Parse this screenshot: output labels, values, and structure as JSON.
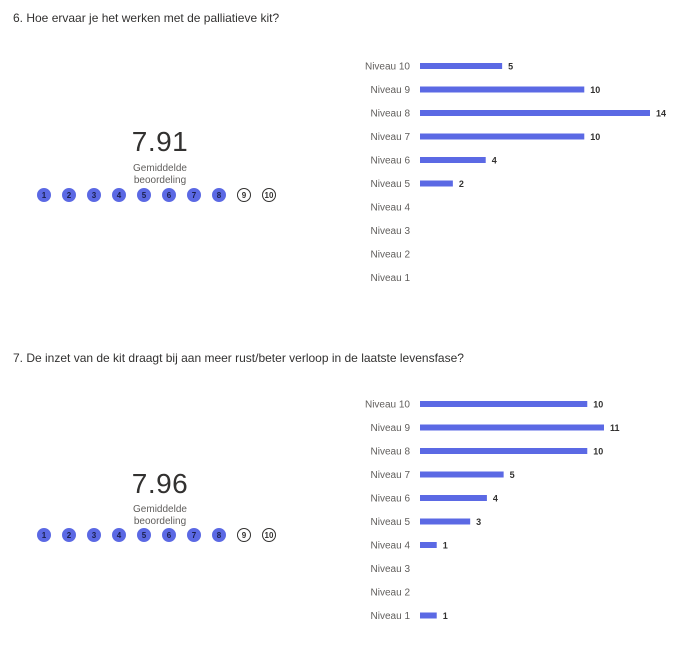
{
  "questions": [
    {
      "title": "6. Hoe ervaar je het werken met de palliatieve kit?",
      "average": "7.91",
      "average_label": "Gemiddelde beoordeling",
      "rating_scale": [
        "1",
        "2",
        "3",
        "4",
        "5",
        "6",
        "7",
        "8",
        "9",
        "10"
      ],
      "filled_count": 8
    },
    {
      "title": "7. De inzet van de kit draagt bij aan meer rust/beter verloop in de laatste levensfase?",
      "average": "7.96",
      "average_label": "Gemiddelde beoordeling",
      "rating_scale": [
        "1",
        "2",
        "3",
        "4",
        "5",
        "6",
        "7",
        "8",
        "9",
        "10"
      ],
      "filled_count": 8
    }
  ],
  "colors": {
    "bar": "#5b69e4",
    "dot_filled": "#5b69e4",
    "text": "#323130",
    "muted": "#605e5c"
  },
  "chart_data": [
    {
      "type": "bar",
      "orientation": "horizontal",
      "categories": [
        "Niveau 10",
        "Niveau 9",
        "Niveau 8",
        "Niveau 7",
        "Niveau 6",
        "Niveau 5",
        "Niveau 4",
        "Niveau 3",
        "Niveau 2",
        "Niveau 1"
      ],
      "values": [
        5,
        10,
        14,
        10,
        4,
        2,
        0,
        0,
        0,
        0
      ],
      "xlim": [
        0,
        14
      ],
      "grid": false
    },
    {
      "type": "bar",
      "orientation": "horizontal",
      "categories": [
        "Niveau 10",
        "Niveau 9",
        "Niveau 8",
        "Niveau 7",
        "Niveau 6",
        "Niveau 5",
        "Niveau 4",
        "Niveau 3",
        "Niveau 2",
        "Niveau 1"
      ],
      "values": [
        10,
        11,
        10,
        5,
        4,
        3,
        1,
        0,
        0,
        1
      ],
      "xlim": [
        0,
        11
      ],
      "grid": false
    }
  ]
}
